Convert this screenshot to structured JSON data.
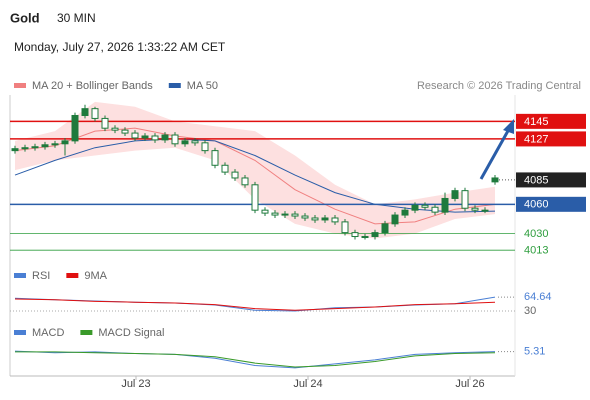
{
  "header": {
    "symbol": "Gold",
    "interval": "30 MIN",
    "datetime": "Monday, July 27, 2026 1:33:22 AM CET",
    "credit": "Research © 2026 Trading Central"
  },
  "chart_data": [
    {
      "type": "candlestick",
      "x": [
        0,
        1,
        2,
        3,
        4,
        5,
        6,
        7,
        8,
        9,
        10,
        11,
        12,
        13,
        14,
        15,
        16,
        17,
        18,
        19,
        20,
        21,
        22,
        23,
        24,
        25,
        26,
        27,
        28,
        29,
        30,
        31,
        32,
        33,
        34,
        35,
        36,
        37,
        38,
        39,
        40,
        41,
        42,
        43,
        44,
        45,
        46,
        47,
        48
      ],
      "open": [
        4115,
        4117,
        4118,
        4119,
        4121,
        4122,
        4125,
        4151,
        4158,
        4148,
        4138,
        4136,
        4133,
        4128,
        4130,
        4126,
        4131,
        4122,
        4125,
        4123,
        4115,
        4100,
        4093,
        4087,
        4080,
        4054,
        4051,
        4049,
        4050,
        4048,
        4046,
        4044,
        4046,
        4042,
        4031,
        4027,
        4027,
        4031,
        4040,
        4049,
        4054,
        4059,
        4057,
        4052,
        4066,
        4074,
        4056,
        4054,
        4083
      ],
      "high": [
        4120,
        4121,
        4122,
        4124,
        4125,
        4128,
        4154,
        4162,
        4160,
        4151,
        4141,
        4139,
        4136,
        4133,
        4133,
        4134,
        4134,
        4128,
        4128,
        4126,
        4118,
        4103,
        4096,
        4090,
        4083,
        4057,
        4054,
        4053,
        4053,
        4051,
        4049,
        4049,
        4049,
        4045,
        4034,
        4030,
        4034,
        4043,
        4052,
        4057,
        4062,
        4062,
        4060,
        4072,
        4077,
        4077,
        4059,
        4057,
        4090
      ],
      "low": [
        4112,
        4114,
        4115,
        4116,
        4118,
        4110,
        4122,
        4148,
        4145,
        4135,
        4133,
        4130,
        4125,
        4125,
        4123,
        4123,
        4119,
        4119,
        4120,
        4112,
        4097,
        4090,
        4084,
        4077,
        4051,
        4048,
        4046,
        4046,
        4045,
        4043,
        4041,
        4041,
        4039,
        4028,
        4024,
        4024,
        4024,
        4028,
        4037,
        4046,
        4051,
        4054,
        4049,
        4049,
        4063,
        4053,
        4051,
        4051,
        4080
      ],
      "close": [
        4117,
        4118,
        4119,
        4121,
        4122,
        4125,
        4151,
        4158,
        4148,
        4138,
        4136,
        4133,
        4128,
        4130,
        4126,
        4131,
        4122,
        4125,
        4123,
        4115,
        4100,
        4093,
        4087,
        4080,
        4054,
        4051,
        4049,
        4050,
        4048,
        4046,
        4044,
        4046,
        4042,
        4031,
        4027,
        4027,
        4031,
        4040,
        4049,
        4054,
        4059,
        4057,
        4052,
        4066,
        4074,
        4056,
        4054,
        4054,
        4087
      ],
      "up_color": "#1e7a3c",
      "down_color": "#1e7a3c",
      "xlim": [
        -0.5,
        50
      ],
      "ylim": [
        4005,
        4172
      ],
      "xticks": [
        {
          "value": 12.1,
          "label": "Jul 23"
        },
        {
          "value": 29.3,
          "label": "Jul 24"
        },
        {
          "value": 45.5,
          "label": "Jul 26"
        }
      ],
      "overlays": [
        {
          "name": "MA 20 + Bollinger Bands",
          "color": "#f08080",
          "band_color": "#fde0e0",
          "x": [
            0,
            4,
            8,
            12,
            16,
            20,
            24,
            28,
            32,
            36,
            40,
            44,
            48
          ],
          "values": [
            4115,
            4120,
            4135,
            4138,
            4130,
            4125,
            4105,
            4075,
            4055,
            4040,
            4042,
            4055,
            4060
          ],
          "upper": [
            4125,
            4135,
            4165,
            4160,
            4145,
            4140,
            4135,
            4110,
            4080,
            4060,
            4065,
            4072,
            4078
          ],
          "lower": [
            4095,
            4105,
            4110,
            4115,
            4118,
            4105,
            4065,
            4040,
            4030,
            4025,
            4030,
            4045,
            4050
          ]
        },
        {
          "name": "MA 50",
          "color": "#2a5da8",
          "x": [
            0,
            4,
            8,
            12,
            16,
            20,
            24,
            28,
            32,
            36,
            40,
            44,
            48
          ],
          "values": [
            4090,
            4105,
            4118,
            4125,
            4127,
            4125,
            4110,
            4090,
            4072,
            4060,
            4055,
            4052,
            4053
          ]
        }
      ],
      "levels": [
        {
          "value": 4145,
          "color": "#e01010",
          "boxed": true,
          "line": "solid"
        },
        {
          "value": 4127,
          "color": "#e01010",
          "boxed": true,
          "line": "solid"
        },
        {
          "value": 4085,
          "color": "#222222",
          "boxed": true,
          "line": "dotted"
        },
        {
          "value": 4060,
          "color": "#2a5da8",
          "boxed": true,
          "line": "solid"
        },
        {
          "value": 4030,
          "color": "#2e9e3e",
          "boxed": false,
          "line": "solid"
        },
        {
          "value": 4013,
          "color": "#2e9e3e",
          "boxed": false,
          "line": "solid"
        }
      ]
    },
    {
      "type": "line",
      "ylim": [
        0,
        100
      ],
      "yticks": [
        30
      ],
      "series": [
        {
          "name": "RSI",
          "color": "#4a7fd4",
          "x": [
            0,
            4,
            8,
            12,
            16,
            20,
            24,
            28,
            32,
            36,
            40,
            44,
            48
          ],
          "values": [
            62,
            58,
            55,
            52,
            50,
            45,
            32,
            30,
            38,
            40,
            45,
            48,
            64.64
          ]
        },
        {
          "name": "9MA",
          "color": "#e01010",
          "x": [
            0,
            4,
            8,
            12,
            16,
            20,
            24,
            28,
            32,
            36,
            40,
            44,
            48
          ],
          "values": [
            60,
            58,
            54,
            52,
            50,
            46,
            36,
            32,
            36,
            40,
            46,
            48,
            52
          ]
        }
      ]
    },
    {
      "type": "line",
      "ylim": [
        -24,
        20
      ],
      "series": [
        {
          "name": "MACD",
          "color": "#4a7fd4",
          "x": [
            0,
            4,
            8,
            12,
            16,
            20,
            24,
            28,
            32,
            36,
            40,
            44,
            48
          ],
          "values": [
            6,
            4,
            5,
            3,
            2,
            -3,
            -12,
            -15,
            -10,
            -5,
            2,
            4,
            5.31
          ]
        },
        {
          "name": "MACD Signal",
          "color": "#3a9a2a",
          "x": [
            0,
            4,
            8,
            12,
            16,
            20,
            24,
            28,
            32,
            36,
            40,
            44,
            48
          ],
          "values": [
            5,
            5,
            4,
            3,
            2,
            -1,
            -9,
            -14,
            -12,
            -7,
            0,
            3,
            4
          ]
        }
      ]
    }
  ]
}
